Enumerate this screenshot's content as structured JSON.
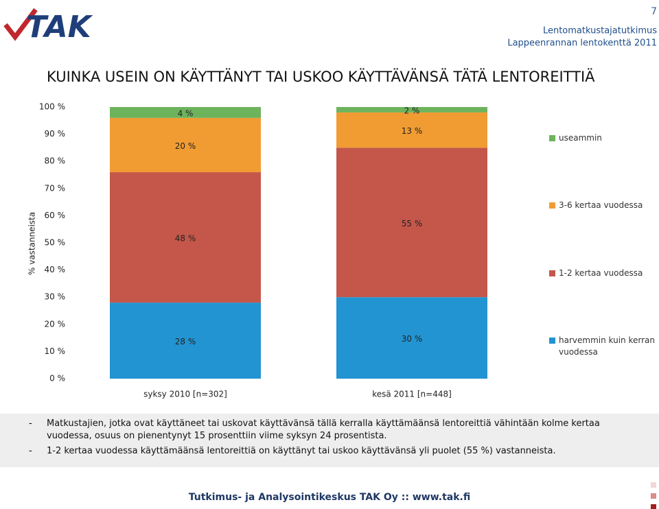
{
  "header": {
    "logo": "TAK",
    "page_number": "7",
    "line1": "Lentomatkustajatutkimus",
    "line2": "Lappeenrannan lentokenttä 2011"
  },
  "chart_data": {
    "type": "stacked_bar",
    "title": "KUINKA USEIN ON KÄYTTÄNYT TAI USKOO KÄYTTÄVÄNSÄ TÄTÄ LENTOREITTIÄ",
    "y_label": "% vastanneista",
    "categories": [
      "syksy 2010 [n=302]",
      "kesä 2011 [n=448]"
    ],
    "series": [
      {
        "name": "harvemmin kuin kerran vuodessa",
        "color": "#2394d2",
        "values": [
          28,
          30
        ],
        "value_labels": [
          "28 %",
          "30 %"
        ]
      },
      {
        "name": "1-2 kertaa vuodessa",
        "color": "#c4574a",
        "values": [
          48,
          55
        ],
        "value_labels": [
          "48 %",
          "55 %"
        ]
      },
      {
        "name": "3-6 kertaa vuodessa",
        "color": "#f09c33",
        "values": [
          20,
          13
        ],
        "value_labels": [
          "20 %",
          "13 %"
        ]
      },
      {
        "name": "useammin",
        "color": "#6db35c",
        "values": [
          4,
          2
        ],
        "value_labels": [
          "4 %",
          "2 %"
        ]
      }
    ],
    "ylim": [
      0,
      100
    ],
    "yticks": [
      {
        "value": 0,
        "label": "0 %"
      },
      {
        "value": 10,
        "label": "10 %"
      },
      {
        "value": 20,
        "label": "20 %"
      },
      {
        "value": 30,
        "label": "30 %"
      },
      {
        "value": 40,
        "label": "40 %"
      },
      {
        "value": 50,
        "label": "50 %"
      },
      {
        "value": 60,
        "label": "60 %"
      },
      {
        "value": 70,
        "label": "70 %"
      },
      {
        "value": 80,
        "label": "80 %"
      },
      {
        "value": 90,
        "label": "90 %"
      },
      {
        "value": 100,
        "label": "100 %"
      }
    ],
    "legend": "right"
  },
  "notes": [
    "Matkustajien, jotka ovat käyttäneet tai uskovat käyttävänsä tällä kerralla käyttämäänsä lentoreittiä vähintään kolme kertaa vuodessa, osuus on pienentynyt 15 prosenttiin viime syksyn 24 prosentista.",
    "1-2 kertaa vuodessa käyttämäänsä lentoreittiä on käyttänyt tai uskoo käyttävänsä yli puolet (55 %) vastanneista."
  ],
  "footer": "Tutkimus- ja Analysointikeskus TAK Oy :: www.tak.fi"
}
